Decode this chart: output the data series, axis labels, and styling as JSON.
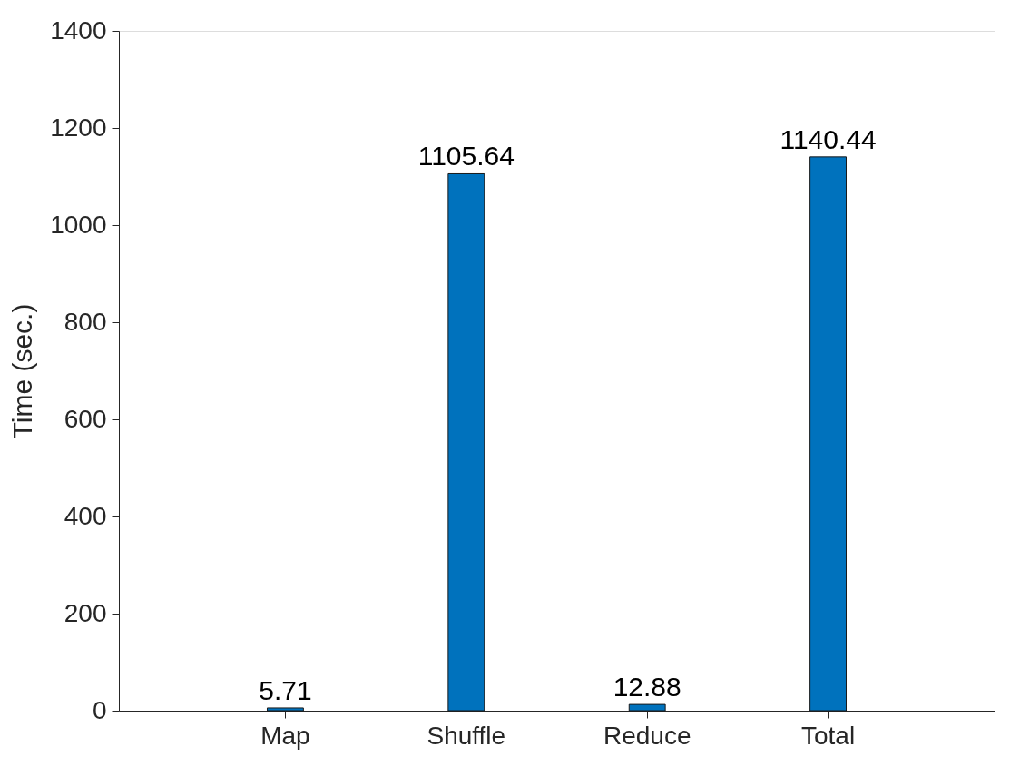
{
  "chart_data": {
    "type": "bar",
    "ylabel": "Time (sec.)",
    "categories": [
      "Map",
      "Shuffle",
      "Reduce",
      "Total"
    ],
    "series": [
      {
        "color": "#0072bd",
        "values": [
          5.71,
          1105.64,
          12.88,
          1140.44
        ]
      }
    ],
    "ylim": [
      0,
      1400
    ],
    "yticks": [
      0,
      200,
      400,
      600,
      800,
      1000,
      1200,
      1400
    ],
    "data_labels": true,
    "grid": false
  }
}
